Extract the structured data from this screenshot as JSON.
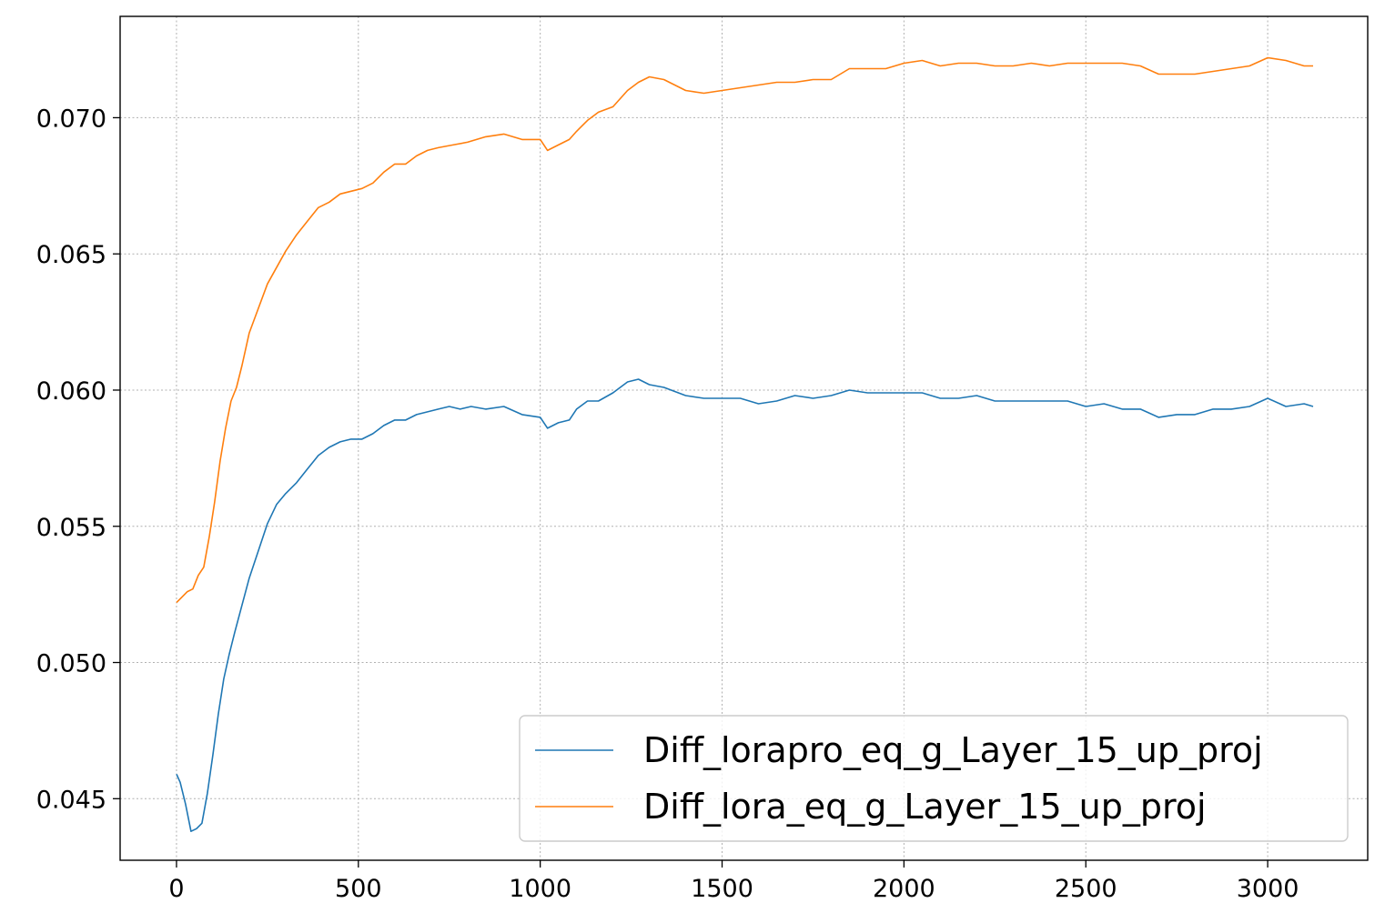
{
  "chart_data": {
    "type": "line",
    "title": "",
    "xlabel": "",
    "ylabel": "",
    "xlim": [
      -155,
      3275
    ],
    "ylim": [
      0.04274,
      0.07372
    ],
    "grid": true,
    "legend_position": "lower-right",
    "x_ticks": [
      0,
      500,
      1000,
      1500,
      2000,
      2500,
      3000
    ],
    "y_ticks": [
      0.045,
      0.05,
      0.055,
      0.06,
      0.065,
      0.07
    ],
    "x_tick_labels": [
      "0",
      "500",
      "1000",
      "1500",
      "2000",
      "2500",
      "3000"
    ],
    "y_tick_labels": [
      "0.045",
      "0.050",
      "0.055",
      "0.060",
      "0.065",
      "0.070"
    ],
    "series": [
      {
        "name": "Diff_lorapro_eq_g_Layer_15_up_proj",
        "color": "#1f77b4",
        "x": [
          0,
          10,
          25,
          40,
          55,
          70,
          85,
          100,
          115,
          130,
          145,
          160,
          180,
          200,
          225,
          250,
          275,
          300,
          330,
          360,
          390,
          420,
          450,
          480,
          510,
          540,
          570,
          600,
          630,
          660,
          690,
          720,
          750,
          780,
          810,
          850,
          900,
          950,
          1000,
          1020,
          1050,
          1080,
          1100,
          1130,
          1160,
          1200,
          1240,
          1270,
          1300,
          1340,
          1400,
          1450,
          1500,
          1550,
          1600,
          1650,
          1700,
          1750,
          1800,
          1850,
          1900,
          1950,
          2000,
          2050,
          2100,
          2150,
          2200,
          2250,
          2300,
          2350,
          2400,
          2450,
          2500,
          2550,
          2600,
          2650,
          2700,
          2750,
          2800,
          2850,
          2900,
          2950,
          3000,
          3050,
          3100,
          3125
        ],
        "values": [
          0.0459,
          0.0456,
          0.0448,
          0.0438,
          0.0439,
          0.0441,
          0.0452,
          0.0466,
          0.0481,
          0.0494,
          0.0503,
          0.0511,
          0.0521,
          0.0531,
          0.0541,
          0.0551,
          0.0558,
          0.0562,
          0.0566,
          0.0571,
          0.0576,
          0.0579,
          0.0581,
          0.0582,
          0.0582,
          0.0584,
          0.0587,
          0.0589,
          0.0589,
          0.0591,
          0.0592,
          0.0593,
          0.0594,
          0.0593,
          0.0594,
          0.0593,
          0.0594,
          0.0591,
          0.059,
          0.0586,
          0.0588,
          0.0589,
          0.0593,
          0.0596,
          0.0596,
          0.0599,
          0.0603,
          0.0604,
          0.0602,
          0.0601,
          0.0598,
          0.0597,
          0.0597,
          0.0597,
          0.0595,
          0.0596,
          0.0598,
          0.0597,
          0.0598,
          0.06,
          0.0599,
          0.0599,
          0.0599,
          0.0599,
          0.0597,
          0.0597,
          0.0598,
          0.0596,
          0.0596,
          0.0596,
          0.0596,
          0.0596,
          0.0594,
          0.0595,
          0.0593,
          0.0593,
          0.059,
          0.0591,
          0.0591,
          0.0593,
          0.0593,
          0.0594,
          0.0597,
          0.0594,
          0.0595,
          0.0594
        ]
      },
      {
        "name": "Diff_lora_eq_g_Layer_15_up_proj",
        "color": "#ff7f0e",
        "x": [
          0,
          15,
          30,
          45,
          60,
          75,
          90,
          105,
          120,
          135,
          150,
          165,
          180,
          200,
          225,
          250,
          275,
          300,
          330,
          360,
          390,
          420,
          450,
          480,
          510,
          540,
          570,
          600,
          630,
          660,
          690,
          720,
          760,
          800,
          850,
          900,
          950,
          1000,
          1020,
          1050,
          1080,
          1100,
          1130,
          1160,
          1200,
          1240,
          1270,
          1300,
          1340,
          1400,
          1450,
          1500,
          1550,
          1600,
          1650,
          1700,
          1750,
          1800,
          1850,
          1900,
          1950,
          2000,
          2050,
          2100,
          2150,
          2200,
          2250,
          2300,
          2350,
          2400,
          2450,
          2500,
          2550,
          2600,
          2650,
          2700,
          2750,
          2800,
          2850,
          2900,
          2950,
          3000,
          3050,
          3100,
          3125
        ],
        "values": [
          0.0522,
          0.0524,
          0.0526,
          0.0527,
          0.0532,
          0.0535,
          0.0546,
          0.0559,
          0.0574,
          0.0586,
          0.0596,
          0.0601,
          0.0609,
          0.0621,
          0.063,
          0.0639,
          0.0645,
          0.0651,
          0.0657,
          0.0662,
          0.0667,
          0.0669,
          0.0672,
          0.0673,
          0.0674,
          0.0676,
          0.068,
          0.0683,
          0.0683,
          0.0686,
          0.0688,
          0.0689,
          0.069,
          0.0691,
          0.0693,
          0.0694,
          0.0692,
          0.0692,
          0.0688,
          0.069,
          0.0692,
          0.0695,
          0.0699,
          0.0702,
          0.0704,
          0.071,
          0.0713,
          0.0715,
          0.0714,
          0.071,
          0.0709,
          0.071,
          0.0711,
          0.0712,
          0.0713,
          0.0713,
          0.0714,
          0.0714,
          0.0718,
          0.0718,
          0.0718,
          0.072,
          0.0721,
          0.0719,
          0.072,
          0.072,
          0.0719,
          0.0719,
          0.072,
          0.0719,
          0.072,
          0.072,
          0.072,
          0.072,
          0.0719,
          0.0716,
          0.0716,
          0.0716,
          0.0717,
          0.0718,
          0.0719,
          0.0722,
          0.0721,
          0.0719,
          0.0719
        ]
      }
    ]
  }
}
